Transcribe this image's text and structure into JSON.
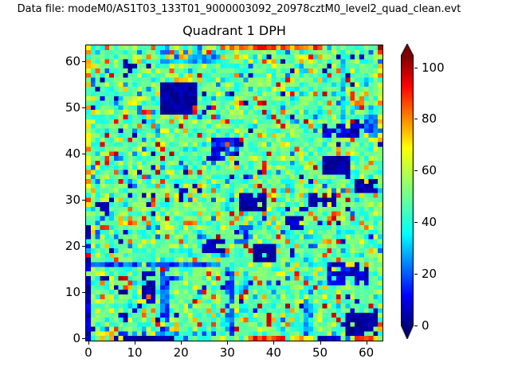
{
  "figure": {
    "data_file_label": "Data file: modeM0/AS1T03_133T01_9000003092_20978cztM0_level2_quad_clean.evt",
    "background": "#ffffff"
  },
  "chart_data": {
    "type": "heatmap",
    "title": "Quadrant 1 DPH",
    "xlabel": "",
    "ylabel": "",
    "grid_size": 64,
    "xlim": [
      -0.5,
      63.5
    ],
    "ylim": [
      -0.5,
      63.5
    ],
    "xticks": [
      0,
      10,
      20,
      30,
      40,
      50,
      60
    ],
    "yticks": [
      0,
      10,
      20,
      30,
      40,
      50,
      60
    ],
    "colormap": "jet",
    "vmin": 0,
    "vmax": 104.5,
    "colorbar": {
      "ticks": [
        0,
        20,
        40,
        60,
        80,
        100
      ],
      "extend": "both",
      "under_color": "#000080",
      "over_color": "#800000"
    },
    "colormap_stops": [
      [
        0.0,
        [
          0,
          0,
          128
        ]
      ],
      [
        0.11,
        [
          0,
          0,
          255
        ]
      ],
      [
        0.34,
        [
          0,
          255,
          255
        ]
      ],
      [
        0.66,
        [
          255,
          255,
          0
        ]
      ],
      [
        0.89,
        [
          255,
          0,
          0
        ]
      ],
      [
        1.0,
        [
          128,
          0,
          0
        ]
      ]
    ],
    "value_description": "Detector plane histogram counts: green background ~40-56, cyan ~36-44, hot pixels 65-104, cold/dead pixels 0-15, module boundary lines ~10-34",
    "noise": {
      "seed": 20978,
      "bands": [
        {
          "p": 0.5,
          "v": [
            44,
            56
          ]
        },
        {
          "p": 0.7,
          "v": [
            36,
            44
          ]
        },
        {
          "p": 0.78,
          "v": [
            56,
            64
          ]
        },
        {
          "p": 0.85,
          "v": [
            18,
            36
          ]
        },
        {
          "p": 0.91,
          "v": [
            64,
            78
          ]
        },
        {
          "p": 0.955,
          "v": [
            80,
            100
          ]
        },
        {
          "p": 0.98,
          "v": [
            0,
            10
          ]
        },
        {
          "p": 1.0,
          "v": [
            30,
            38
          ]
        }
      ]
    },
    "features": [
      {
        "r": [
          63,
          63,
          43,
          63
        ],
        "v": [
          58,
          92
        ],
        "p": 0.65
      },
      {
        "r": [
          30,
          50,
          63,
          63
        ],
        "v": [
          72,
          96
        ],
        "p": 1
      },
      {
        "r": [
          16,
          28,
          60,
          62
        ],
        "v": [
          18,
          38
        ],
        "p": 0.8
      },
      {
        "r": [
          17,
          22,
          61,
          62
        ],
        "v": [
          70,
          95
        ],
        "p": 0.45
      },
      {
        "r": [
          8,
          10,
          57,
          60
        ],
        "v": [
          0,
          8
        ],
        "p": 0.5
      },
      {
        "r": [
          16,
          23,
          49,
          55
        ],
        "v": [
          0,
          6
        ],
        "p": 1
      },
      {
        "r": [
          19,
          21,
          55,
          56
        ],
        "v": [
          64,
          80
        ],
        "p": 0.6
      },
      {
        "r": [
          23,
          23,
          49,
          50
        ],
        "v": [
          85,
          95
        ],
        "p": 1
      },
      {
        "r": [
          27,
          32,
          39,
          43
        ],
        "v": [
          0,
          22
        ],
        "p": 0.8
      },
      {
        "r": [
          25,
          26,
          43,
          45
        ],
        "v": [
          66,
          82
        ],
        "p": 0.7
      },
      {
        "r": [
          0,
          0,
          33,
          63
        ],
        "v": [
          62,
          88
        ],
        "p": 0.5
      },
      {
        "r": [
          18,
          24,
          32,
          33
        ],
        "v": [
          0,
          10
        ],
        "p": 0.45
      },
      {
        "r": [
          55,
          55,
          45,
          62
        ],
        "v": [
          24,
          40
        ],
        "p": 0.9
      },
      {
        "r": [
          51,
          58,
          44,
          46
        ],
        "v": [
          0,
          14
        ],
        "p": 0.8
      },
      {
        "r": [
          60,
          62,
          44,
          48
        ],
        "v": [
          12,
          32
        ],
        "p": 0.9
      },
      {
        "r": [
          51,
          56,
          36,
          39
        ],
        "v": [
          0,
          6
        ],
        "p": 0.9
      },
      {
        "r": [
          57,
          59,
          51,
          52
        ],
        "v": [
          70,
          92
        ],
        "p": 0.8
      },
      {
        "r": [
          58,
          62,
          32,
          34
        ],
        "v": [
          0,
          10
        ],
        "p": 0.85
      },
      {
        "r": [
          0,
          0,
          0,
          24
        ],
        "v": [
          0,
          14
        ],
        "p": 0.85
      },
      {
        "r": [
          1,
          30,
          16,
          16
        ],
        "v": [
          10,
          30
        ],
        "p": 0.85
      },
      {
        "r": [
          16,
          17,
          2,
          15
        ],
        "v": [
          10,
          26
        ],
        "p": 0.75
      },
      {
        "r": [
          30,
          31,
          1,
          15
        ],
        "v": [
          10,
          28
        ],
        "p": 0.8
      },
      {
        "r": [
          2,
          29,
          1,
          1
        ],
        "v": [
          14,
          34
        ],
        "p": 0.55
      },
      {
        "r": [
          12,
          14,
          8,
          14
        ],
        "v": [
          0,
          8
        ],
        "p": 0.8
      },
      {
        "r": [
          7,
          9,
          3,
          5
        ],
        "v": [
          0,
          14
        ],
        "p": 0.5
      },
      {
        "r": [
          25,
          29,
          19,
          21
        ],
        "v": [
          0,
          12
        ],
        "p": 0.7
      },
      {
        "r": [
          2,
          4,
          28,
          29
        ],
        "v": [
          0,
          10
        ],
        "p": 0.7
      },
      {
        "r": [
          8,
          18,
          0,
          0
        ],
        "v": [
          0,
          8
        ],
        "p": 1
      },
      {
        "r": [
          3,
          5,
          0,
          1
        ],
        "v": [
          64,
          84
        ],
        "p": 0.7
      },
      {
        "r": [
          33,
          38,
          28,
          31
        ],
        "v": [
          0,
          6
        ],
        "p": 0.9
      },
      {
        "r": [
          48,
          53,
          29,
          31
        ],
        "v": [
          0,
          8
        ],
        "p": 0.85
      },
      {
        "r": [
          43,
          46,
          24,
          26
        ],
        "v": [
          0,
          10
        ],
        "p": 0.8
      },
      {
        "r": [
          36,
          40,
          17,
          20
        ],
        "v": [
          0,
          6
        ],
        "p": 0.9
      },
      {
        "r": [
          33,
          35,
          20,
          24
        ],
        "v": [
          10,
          30
        ],
        "p": 0.7
      },
      {
        "r": [
          41,
          63,
          22,
          23
        ],
        "v": [
          30,
          46
        ],
        "p": 0.45
      },
      {
        "r": [
          52,
          60,
          12,
          16
        ],
        "v": [
          0,
          16
        ],
        "p": 0.7
      },
      {
        "r": [
          47,
          48,
          1,
          8
        ],
        "v": [
          15,
          32
        ],
        "p": 0.6
      },
      {
        "r": [
          56,
          62,
          1,
          5
        ],
        "v": [
          0,
          6
        ],
        "p": 0.92
      },
      {
        "r": [
          35,
          42,
          0,
          0
        ],
        "v": [
          78,
          100
        ],
        "p": 1
      },
      {
        "r": [
          44,
          48,
          0,
          0
        ],
        "v": [
          64,
          80
        ],
        "p": 1
      },
      {
        "r": [
          50,
          54,
          0,
          0
        ],
        "v": [
          0,
          12
        ],
        "p": 1
      },
      {
        "r": [
          58,
          61,
          0,
          0
        ],
        "v": [
          78,
          95
        ],
        "p": 1
      }
    ],
    "hot_cold_pixels": [
      [
        14,
        30,
        90
      ],
      [
        25,
        31,
        72
      ],
      [
        41,
        19,
        74
      ],
      [
        37,
        21,
        70
      ],
      [
        51,
        31,
        103
      ],
      [
        39,
        31,
        80
      ],
      [
        0,
        18,
        95
      ],
      [
        39,
        61,
        2
      ],
      [
        46,
        34,
        74
      ],
      [
        13,
        59,
        3
      ],
      [
        3,
        56,
        2
      ],
      [
        57,
        61,
        3
      ],
      [
        11,
        10,
        70
      ],
      [
        11,
        8,
        68
      ],
      [
        3,
        14,
        68
      ],
      [
        29,
        63,
        86
      ],
      [
        59,
        0,
        88
      ],
      [
        0,
        62,
        80
      ],
      [
        0,
        57,
        84
      ],
      [
        12,
        31,
        3
      ],
      [
        20,
        31,
        3
      ],
      [
        63,
        45,
        22
      ],
      [
        20,
        56,
        74
      ],
      [
        25,
        53,
        3
      ],
      [
        32,
        38,
        5
      ],
      [
        44,
        58,
        3
      ],
      [
        10,
        44,
        3
      ],
      [
        6,
        52,
        3
      ],
      [
        63,
        63,
        102
      ],
      [
        63,
        62,
        88
      ],
      [
        63,
        59,
        75
      ]
    ]
  }
}
